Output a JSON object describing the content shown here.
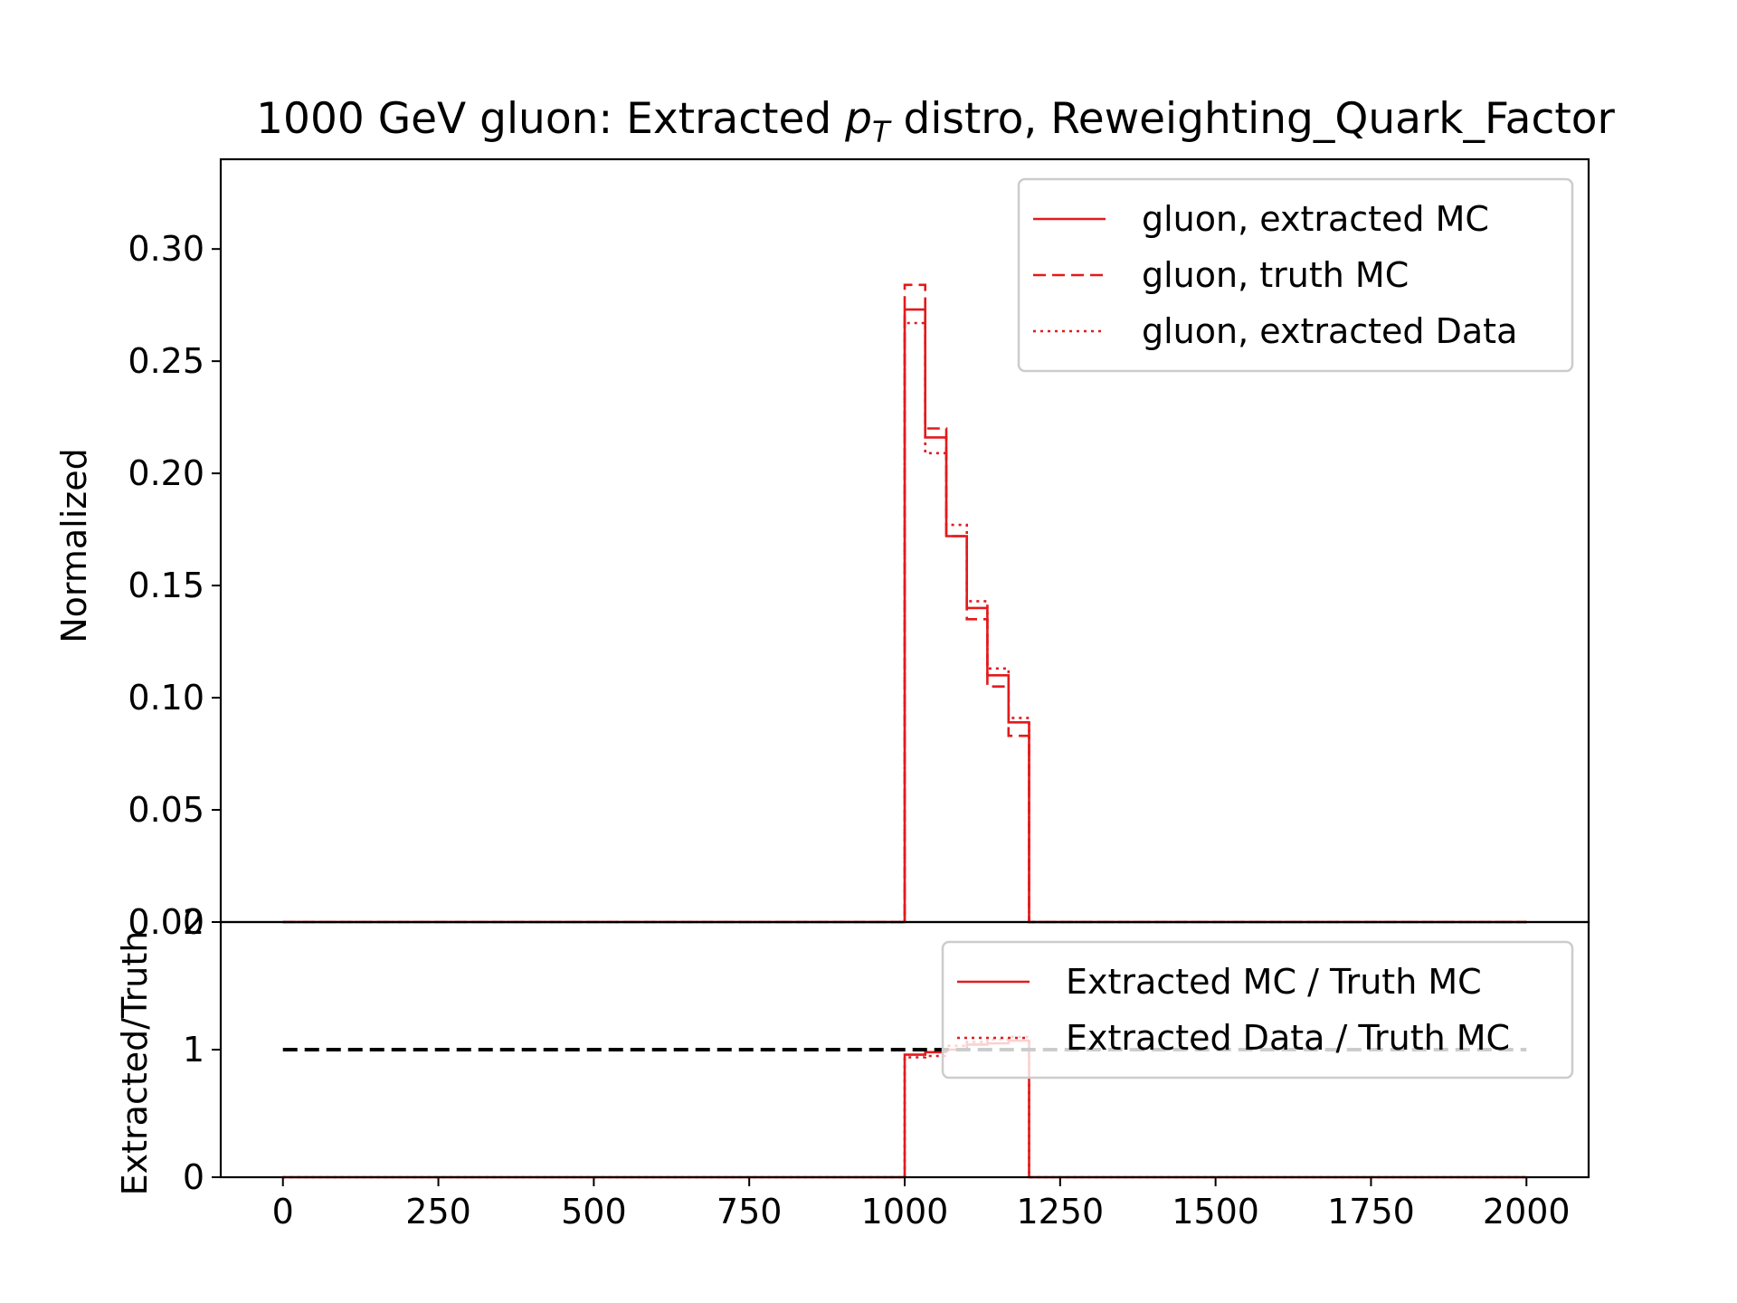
{
  "chart_data": {
    "type": "line",
    "title_parts": [
      "1000 GeV gluon: Extracted ",
      "p",
      "T",
      " distro, Reweighting_Quark_Factor"
    ],
    "colors": {
      "series": "#e31a1c",
      "reference": "#000000",
      "frame": "#000000"
    },
    "bin_edges": [
      0,
      33,
      67,
      100,
      133,
      167,
      200,
      233,
      267,
      300,
      333,
      367,
      400,
      433,
      467,
      500,
      533,
      567,
      600,
      633,
      667,
      700,
      733,
      767,
      800,
      833,
      867,
      900,
      933,
      967,
      1000,
      1033,
      1067,
      1100,
      1133,
      1167,
      1200,
      1233,
      1267,
      1300,
      1333,
      1367,
      1400,
      1433,
      1467,
      1500,
      1533,
      1567,
      1600,
      1633,
      1667,
      1700,
      1733,
      1767,
      1800,
      1833,
      1867,
      1900,
      1933,
      1967,
      2000
    ],
    "panels": [
      {
        "id": "top",
        "ylabel": "Normalized",
        "xlim": [
          -100,
          2100
        ],
        "ylim": [
          0,
          0.34
        ],
        "yticks": [
          0.0,
          0.05,
          0.1,
          0.15,
          0.2,
          0.25,
          0.3
        ],
        "ytick_labels": [
          "0.00",
          "0.05",
          "0.10",
          "0.15",
          "0.20",
          "0.25",
          "0.30"
        ],
        "series": [
          {
            "name": "gluon, extracted MC",
            "style": "solid",
            "nonzero_start": 1000,
            "values": [
              0.273,
              0.216,
              0.172,
              0.14,
              0.11,
              0.089
            ]
          },
          {
            "name": "gluon, truth MC",
            "style": "dashed",
            "nonzero_start": 1000,
            "values": [
              0.284,
              0.22,
              0.172,
              0.135,
              0.105,
              0.083
            ]
          },
          {
            "name": "gluon, extracted Data",
            "style": "dotted",
            "nonzero_start": 1000,
            "values": [
              0.267,
              0.209,
              0.177,
              0.143,
              0.113,
              0.091
            ]
          }
        ],
        "legend_position": "top-right"
      },
      {
        "id": "bottom",
        "ylabel": "Extracted/Truth",
        "xlim": [
          -100,
          2100
        ],
        "ylim": [
          0,
          2
        ],
        "yticks": [
          0,
          1,
          2
        ],
        "ytick_labels": [
          "0",
          "1",
          "2"
        ],
        "xticks": [
          0,
          250,
          500,
          750,
          1000,
          1250,
          1500,
          1750,
          2000
        ],
        "xtick_labels": [
          "0",
          "250",
          "500",
          "750",
          "1000",
          "1250",
          "1500",
          "1750",
          "2000"
        ],
        "reference_line": 1,
        "series": [
          {
            "name": "Extracted MC / Truth MC",
            "style": "solid",
            "nonzero_start": 1000,
            "values": [
              0.96,
              0.98,
              1.0,
              1.04,
              1.05,
              1.07
            ]
          },
          {
            "name": "Extracted Data / Truth MC",
            "style": "dotted",
            "nonzero_start": 1000,
            "values": [
              0.94,
              0.95,
              1.03,
              1.06,
              1.08,
              1.1
            ]
          }
        ],
        "legend_position": "top-right"
      }
    ]
  }
}
